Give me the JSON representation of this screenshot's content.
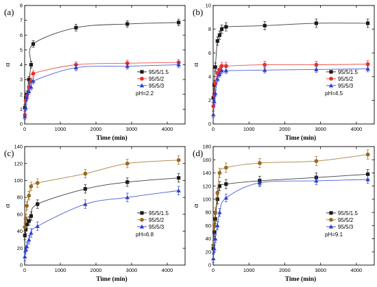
{
  "chart_data": [
    {
      "type": "scatter",
      "panel_label": "(a)",
      "xlabel": "Time (min)",
      "ylabel": "α",
      "xlim": [
        0,
        4500
      ],
      "ylim": [
        0,
        8
      ],
      "xticks": [
        0,
        1000,
        2000,
        3000,
        4000
      ],
      "yticks": [
        0,
        1,
        2,
        3,
        4,
        5,
        6,
        7,
        8
      ],
      "condition": "pH=2.2",
      "legend_position": "right",
      "series": [
        {
          "name": "95/5/1.5",
          "color": "#1a1a1a",
          "marker": "square",
          "x": [
            5,
            30,
            60,
            120,
            180,
            240,
            1440,
            2880,
            4320
          ],
          "y": [
            1.1,
            1.8,
            2.0,
            3.0,
            4.0,
            5.4,
            6.5,
            6.75,
            6.85
          ],
          "error": 0.22
        },
        {
          "name": "95/5/2",
          "color": "#e8312a",
          "marker": "circle",
          "x": [
            5,
            30,
            60,
            120,
            180,
            240,
            1440,
            2880,
            4320
          ],
          "y": [
            0.6,
            1.6,
            1.9,
            2.5,
            2.9,
            3.4,
            4.0,
            4.1,
            4.15
          ],
          "error": 0.2
        },
        {
          "name": "95/5/3",
          "color": "#2a3fd0",
          "marker": "triangle",
          "x": [
            5,
            30,
            60,
            120,
            180,
            240,
            1440,
            2880,
            4320
          ],
          "y": [
            0.5,
            1.1,
            1.8,
            2.2,
            2.5,
            2.9,
            3.8,
            3.9,
            4.0
          ],
          "error": 0.2
        }
      ]
    },
    {
      "type": "scatter",
      "panel_label": "(b)",
      "xlabel": "Time (min)",
      "ylabel": "α",
      "xlim": [
        0,
        4500
      ],
      "ylim": [
        0,
        10
      ],
      "xticks": [
        0,
        1000,
        2000,
        3000,
        4000
      ],
      "yticks": [
        0,
        2,
        4,
        6,
        8,
        10
      ],
      "condition": "pH=4.5",
      "legend_position": "right",
      "series": [
        {
          "name": "95/5/1.5",
          "color": "#1a1a1a",
          "marker": "square",
          "x": [
            5,
            30,
            60,
            120,
            180,
            240,
            360,
            1440,
            2880,
            4320
          ],
          "y": [
            2.2,
            3.3,
            4.8,
            7.0,
            7.5,
            8.0,
            8.2,
            8.3,
            8.5,
            8.5
          ],
          "error": 0.35
        },
        {
          "name": "95/5/2",
          "color": "#e8312a",
          "marker": "circle",
          "x": [
            5,
            30,
            60,
            120,
            180,
            240,
            360,
            1440,
            2880,
            4320
          ],
          "y": [
            1.5,
            2.4,
            3.4,
            4.3,
            4.6,
            4.9,
            4.9,
            5.0,
            5.0,
            5.05
          ],
          "error": 0.3
        },
        {
          "name": "95/5/3",
          "color": "#2a3fd0",
          "marker": "triangle",
          "x": [
            5,
            30,
            60,
            120,
            180,
            240,
            360,
            1440,
            2880,
            4320
          ],
          "y": [
            0.8,
            1.9,
            2.6,
            3.8,
            4.2,
            4.5,
            4.5,
            4.55,
            4.6,
            4.65
          ],
          "error": 0.25
        }
      ]
    },
    {
      "type": "scatter",
      "panel_label": "(c)",
      "xlabel": "Time (min)",
      "ylabel": "α",
      "xlim": [
        0,
        4500
      ],
      "ylim": [
        0,
        140
      ],
      "xticks": [
        0,
        1000,
        2000,
        3000,
        4000
      ],
      "yticks": [
        0,
        20,
        40,
        60,
        80,
        100,
        120,
        140
      ],
      "condition": "pH=6.8",
      "legend_position": "right",
      "series": [
        {
          "name": "95/5/1.5",
          "color": "#1a1a1a",
          "marker": "square",
          "x": [
            5,
            30,
            60,
            120,
            180,
            360,
            1700,
            2880,
            4320
          ],
          "y": [
            35,
            42,
            48,
            52,
            58,
            72,
            90,
            98,
            103
          ],
          "error": 5
        },
        {
          "name": "95/5/2",
          "color": "#9a6a1c",
          "marker": "circle",
          "x": [
            5,
            30,
            60,
            120,
            180,
            360,
            1700,
            2880,
            4320
          ],
          "y": [
            45,
            55,
            70,
            82,
            93,
            97,
            108,
            120,
            124
          ],
          "error": 5
        },
        {
          "name": "95/5/3",
          "color": "#2a3fd0",
          "marker": "triangle",
          "x": [
            5,
            30,
            60,
            120,
            180,
            360,
            1700,
            2880,
            4320
          ],
          "y": [
            10,
            18,
            22,
            30,
            38,
            46,
            72,
            80,
            88
          ],
          "error": 5
        }
      ]
    },
    {
      "type": "scatter",
      "panel_label": "(d)",
      "xlabel": "Time (min)",
      "ylabel": "α",
      "xlim": [
        0,
        4500
      ],
      "ylim": [
        0,
        180
      ],
      "xticks": [
        0,
        1000,
        2000,
        3000,
        4000
      ],
      "yticks": [
        0,
        20,
        40,
        60,
        80,
        100,
        120,
        140,
        160,
        180
      ],
      "condition": "pH=9.1",
      "legend_position": "right",
      "series": [
        {
          "name": "95/5/1.5",
          "color": "#1a1a1a",
          "marker": "square",
          "x": [
            5,
            30,
            60,
            120,
            180,
            360,
            1300,
            2880,
            4320
          ],
          "y": [
            25,
            50,
            70,
            100,
            120,
            123,
            128,
            133,
            138
          ],
          "error": 7
        },
        {
          "name": "95/5/2",
          "color": "#9a6a1c",
          "marker": "circle",
          "x": [
            5,
            30,
            60,
            120,
            180,
            360,
            1300,
            2880,
            4320
          ],
          "y": [
            30,
            60,
            80,
            110,
            140,
            148,
            155,
            158,
            168
          ],
          "error": 7
        },
        {
          "name": "95/5/3",
          "color": "#2a3fd0",
          "marker": "triangle",
          "x": [
            5,
            30,
            60,
            120,
            180,
            360,
            1300,
            2880,
            4320
          ],
          "y": [
            10,
            25,
            40,
            60,
            80,
            102,
            125,
            128,
            130
          ],
          "error": 6
        }
      ]
    }
  ]
}
